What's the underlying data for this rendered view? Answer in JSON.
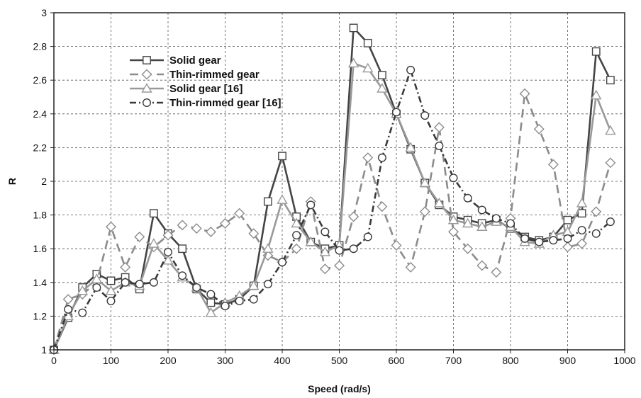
{
  "chart_data": {
    "type": "line",
    "title": "",
    "xlabel": "Speed (rad/s)",
    "ylabel": "R",
    "xlim": [
      0,
      1000
    ],
    "ylim": [
      1,
      3
    ],
    "xticks": [
      0,
      100,
      200,
      300,
      400,
      500,
      600,
      700,
      800,
      900,
      1000
    ],
    "yticks": [
      1,
      1.2,
      1.4,
      1.6,
      1.8,
      2,
      2.2,
      2.4,
      2.6,
      2.8,
      3
    ],
    "xtick_labels": [
      "0",
      "100",
      "200",
      "300",
      "400",
      "500",
      "600",
      "700",
      "800",
      "900",
      "1000"
    ],
    "ytick_labels": [
      "1",
      "1.2",
      "1.4",
      "1.6",
      "1.8",
      "2",
      "2.2",
      "2.4",
      "2.6",
      "2.8",
      "3"
    ],
    "grid": true,
    "legend_position": "top-left",
    "series": [
      {
        "name": "Solid gear",
        "marker": "square",
        "color": "#444444",
        "dash": "solid",
        "x": [
          0,
          25,
          50,
          75,
          100,
          125,
          150,
          175,
          200,
          225,
          250,
          275,
          300,
          325,
          350,
          375,
          400,
          425,
          450,
          475,
          500,
          525,
          550,
          575,
          600,
          625,
          650,
          675,
          700,
          725,
          750,
          775,
          800,
          825,
          850,
          875,
          900,
          925,
          950,
          975
        ],
        "y": [
          1.0,
          1.19,
          1.37,
          1.45,
          1.41,
          1.43,
          1.36,
          1.81,
          1.69,
          1.6,
          1.36,
          1.28,
          1.27,
          1.3,
          1.38,
          1.88,
          2.15,
          1.79,
          1.64,
          1.6,
          1.62,
          2.91,
          2.82,
          2.63,
          2.4,
          2.19,
          1.99,
          1.86,
          1.79,
          1.77,
          1.75,
          1.77,
          1.72,
          1.67,
          1.65,
          1.67,
          1.77,
          1.81,
          2.77,
          2.6
        ]
      },
      {
        "name": "Thin-rimmed gear",
        "marker": "diamond",
        "color": "#8c8c8c",
        "dash": "long-dash",
        "x": [
          0,
          25,
          50,
          75,
          100,
          125,
          150,
          175,
          200,
          225,
          250,
          275,
          300,
          325,
          350,
          375,
          400,
          425,
          450,
          475,
          500,
          525,
          550,
          575,
          600,
          625,
          650,
          675,
          700,
          725,
          750,
          775,
          800,
          825,
          850,
          875,
          900,
          925,
          950,
          975
        ],
        "y": [
          1.0,
          1.3,
          1.33,
          1.4,
          1.73,
          1.49,
          1.67,
          1.61,
          1.68,
          1.74,
          1.72,
          1.7,
          1.75,
          1.81,
          1.69,
          1.56,
          1.52,
          1.6,
          1.88,
          1.48,
          1.5,
          1.79,
          2.14,
          1.85,
          1.62,
          1.49,
          1.82,
          2.32,
          1.7,
          1.6,
          1.5,
          1.46,
          1.78,
          2.52,
          2.31,
          2.1,
          1.61,
          1.63,
          1.82,
          2.11
        ]
      },
      {
        "name": "Solid gear [16]",
        "marker": "triangle",
        "color": "#999999",
        "dash": "solid",
        "x": [
          0,
          25,
          50,
          75,
          100,
          125,
          150,
          175,
          200,
          225,
          250,
          275,
          300,
          325,
          350,
          375,
          400,
          425,
          450,
          475,
          500,
          525,
          550,
          575,
          600,
          625,
          650,
          675,
          700,
          725,
          750,
          775,
          800,
          825,
          850,
          875,
          900,
          925,
          950,
          975
        ],
        "y": [
          1.0,
          1.2,
          1.35,
          1.42,
          1.35,
          1.4,
          1.38,
          1.63,
          1.53,
          1.43,
          1.37,
          1.22,
          1.28,
          1.32,
          1.38,
          1.6,
          1.89,
          1.75,
          1.64,
          1.58,
          1.62,
          2.7,
          2.67,
          2.55,
          2.4,
          2.2,
          1.99,
          1.87,
          1.77,
          1.75,
          1.73,
          1.76,
          1.73,
          1.64,
          1.63,
          1.68,
          1.7,
          1.87,
          2.51,
          2.3
        ]
      },
      {
        "name": "Thin-rimmed gear [16]",
        "marker": "circle",
        "color": "#3a3a3a",
        "dash": "dash-dot",
        "x": [
          0,
          25,
          50,
          75,
          100,
          125,
          150,
          175,
          200,
          225,
          250,
          275,
          300,
          325,
          350,
          375,
          400,
          425,
          450,
          475,
          500,
          525,
          550,
          575,
          600,
          625,
          650,
          675,
          700,
          725,
          750,
          775,
          800,
          825,
          850,
          875,
          900,
          925,
          950,
          975
        ],
        "y": [
          1.0,
          1.24,
          1.22,
          1.37,
          1.29,
          1.4,
          1.39,
          1.4,
          1.58,
          1.44,
          1.37,
          1.33,
          1.26,
          1.29,
          1.3,
          1.39,
          1.52,
          1.68,
          1.86,
          1.7,
          1.59,
          1.6,
          1.67,
          2.14,
          2.41,
          2.66,
          2.39,
          2.21,
          2.02,
          1.9,
          1.83,
          1.78,
          1.75,
          1.66,
          1.64,
          1.65,
          1.66,
          1.71,
          1.69,
          1.76
        ]
      }
    ]
  }
}
